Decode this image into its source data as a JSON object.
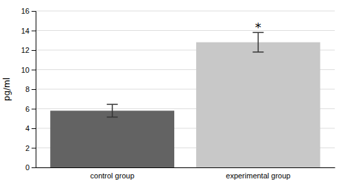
{
  "chart_data": {
    "type": "bar",
    "categories": [
      "control group",
      "experimental group"
    ],
    "values": [
      5.8,
      12.8
    ],
    "errors": [
      0.65,
      1.0
    ],
    "colors": [
      "#636363",
      "#c8c8c8"
    ],
    "ylabel": "pg/ml",
    "ylim": [
      0,
      16
    ],
    "yticks": [
      0,
      2,
      4,
      6,
      8,
      10,
      12,
      14,
      16
    ],
    "grid": true,
    "annotations": [
      {
        "text": "*",
        "x": "experimental group",
        "y": 14.0
      }
    ]
  }
}
